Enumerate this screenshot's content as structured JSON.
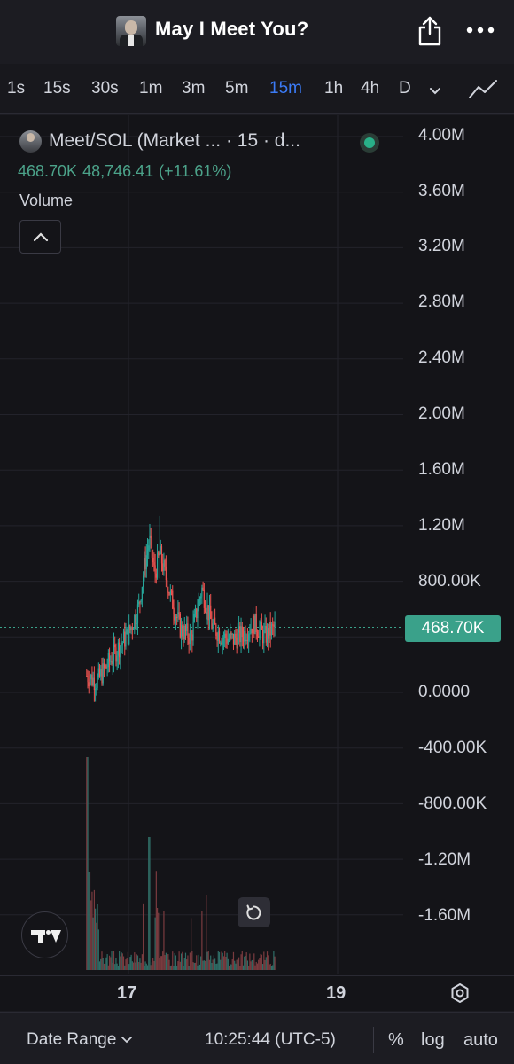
{
  "header": {
    "title": "May I Meet You?",
    "share_icon": "share-icon",
    "more_icon": "more-dots-icon"
  },
  "timeframes": [
    {
      "label": "1s",
      "active": false
    },
    {
      "label": "15s",
      "active": false
    },
    {
      "label": "30s",
      "active": false
    },
    {
      "label": "1m",
      "active": false
    },
    {
      "label": "3m",
      "active": false
    },
    {
      "label": "5m",
      "active": false
    },
    {
      "label": "15m",
      "active": true
    },
    {
      "label": "1h",
      "active": false
    },
    {
      "label": "4h",
      "active": false
    },
    {
      "label": "D",
      "active": false
    }
  ],
  "legend": {
    "title": "Meet/SOL (Market ... · 15 · d...",
    "last": "468.70K",
    "change": "48,746.41",
    "change_pct": "(+11.61%)",
    "volume_label": "Volume"
  },
  "colors": {
    "up": "#26a69a",
    "down": "#ef5350",
    "accent": "#3b7bf6",
    "price_badge": "#3aa18a"
  },
  "price_axis": {
    "labels": [
      "4.00M",
      "3.60M",
      "3.20M",
      "2.80M",
      "2.40M",
      "2.00M",
      "1.60M",
      "1.20M",
      "800.00K",
      "400.00K",
      "0.0000",
      "-400.00K",
      "-800.00K",
      "-1.20M",
      "-1.60M"
    ],
    "current_price_label": "468.70K"
  },
  "time_axis": {
    "labels": [
      "17",
      "19"
    ]
  },
  "chart_data": {
    "type": "candlestick",
    "title": "Meet/SOL (Market ... · 15 · d...",
    "interval": "15m",
    "y_axis_range": [
      -1800000,
      4000000
    ],
    "y_ticks": [
      4000000,
      3600000,
      3200000,
      2800000,
      2400000,
      2000000,
      1600000,
      1200000,
      800000,
      400000,
      0,
      -400000,
      -800000,
      -1200000,
      -1600000
    ],
    "x_ticks": [
      "17",
      "19"
    ],
    "x_range_days": [
      16.4,
      18.9
    ],
    "last_price": 468700,
    "change": 48746.41,
    "change_pct": 11.61,
    "grid": true,
    "price_envelope": {
      "x_day": [
        16.6,
        16.7,
        16.8,
        16.9,
        17.0,
        17.1,
        17.15,
        17.2,
        17.25,
        17.3,
        17.4,
        17.5,
        17.6,
        17.7,
        17.8,
        17.9,
        18.0,
        18.1,
        18.2,
        18.3,
        18.4
      ],
      "close": [
        120000,
        80000,
        200000,
        320000,
        420000,
        620000,
        900000,
        1100000,
        850000,
        1000000,
        700000,
        450000,
        400000,
        750000,
        480000,
        400000,
        380000,
        420000,
        500000,
        400000,
        470000
      ]
    },
    "volume_note": "volume histogram pane at bottom, peak spike near day 16.6"
  },
  "bottom_bar": {
    "date_range_label": "Date Range",
    "time_label": "10:25:44 (UTC-5)",
    "percent_label": "%",
    "log_label": "log",
    "auto_label": "auto"
  }
}
